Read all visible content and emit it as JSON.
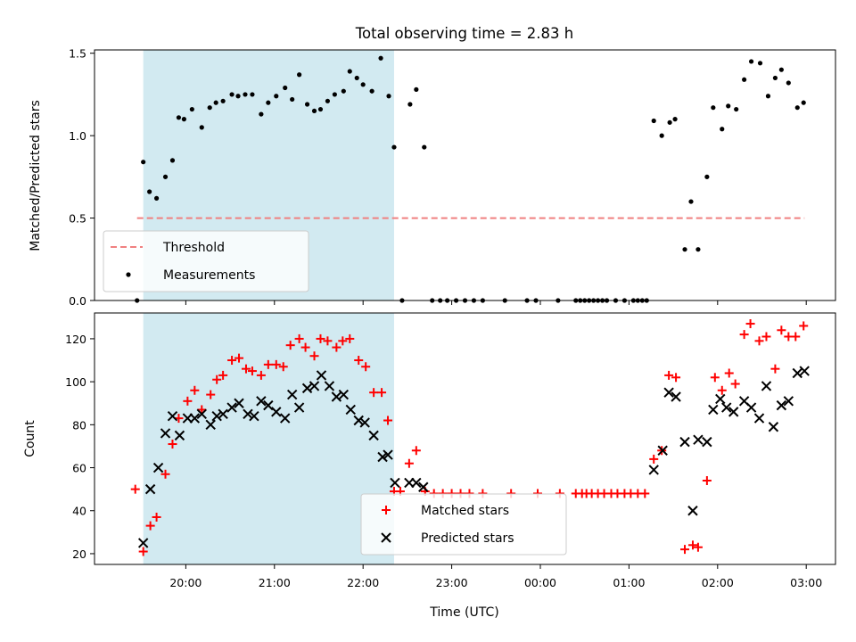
{
  "chart_data": {
    "type": "scatter",
    "title": "Total observing time = 2.83 h",
    "xlabel": "Time (UTC)",
    "x_ticks": [
      "20:00",
      "21:00",
      "22:00",
      "23:00",
      "00:00",
      "01:00",
      "02:00",
      "03:00"
    ],
    "x_tick_hours": [
      20,
      21,
      22,
      23,
      24,
      25,
      26,
      27
    ],
    "xlim": [
      18.97,
      27.33
    ],
    "shaded_span": {
      "x": [
        19.52,
        22.35
      ],
      "color": "#add8e6"
    },
    "panels": [
      {
        "ylabel": "Matched/Predicted stars",
        "ylim": [
          0,
          1.52
        ],
        "y_ticks": [
          "0.0",
          "0.5",
          "1.0",
          "1.5"
        ],
        "y_tick_values": [
          0,
          0.5,
          1.0,
          1.5
        ],
        "legend": {
          "position": "lower left"
        },
        "series": [
          {
            "name": "Threshold",
            "kind": "line",
            "style": "dashed",
            "color": "#f08080",
            "x": [
              19.45,
              26.98
            ],
            "y": [
              0.5,
              0.5
            ]
          },
          {
            "name": "Measurements",
            "kind": "dots",
            "color": "#000000",
            "x": [
              19.45,
              19.52,
              19.59,
              19.67,
              19.77,
              19.85,
              19.92,
              19.98,
              20.07,
              20.18,
              20.27,
              20.34,
              20.42,
              20.52,
              20.59,
              20.67,
              20.75,
              20.85,
              20.93,
              21.02,
              21.12,
              21.2,
              21.28,
              21.37,
              21.45,
              21.52,
              21.6,
              21.68,
              21.78,
              21.85,
              21.93,
              22.0,
              22.1,
              22.2,
              22.29,
              22.35,
              22.44,
              22.53,
              22.6,
              22.69,
              22.78,
              22.87,
              22.95,
              23.05,
              23.15,
              23.25,
              23.35,
              23.6,
              23.85,
              23.95,
              24.2,
              24.4,
              24.45,
              24.5,
              24.55,
              24.6,
              24.65,
              24.7,
              24.75,
              24.85,
              24.95,
              25.05,
              25.1,
              25.15,
              25.2,
              25.28,
              25.37,
              25.46,
              25.52,
              25.63,
              25.7,
              25.78,
              25.88,
              25.95,
              26.05,
              26.12,
              26.21,
              26.3,
              26.38,
              26.48,
              26.57,
              26.65,
              26.72,
              26.8,
              26.9,
              26.97
            ],
            "y": [
              0.0,
              0.84,
              0.66,
              0.62,
              0.75,
              0.85,
              1.11,
              1.1,
              1.16,
              1.05,
              1.17,
              1.2,
              1.21,
              1.25,
              1.24,
              1.25,
              1.25,
              1.13,
              1.2,
              1.24,
              1.29,
              1.22,
              1.37,
              1.19,
              1.15,
              1.16,
              1.21,
              1.25,
              1.27,
              1.39,
              1.35,
              1.31,
              1.27,
              1.47,
              1.24,
              0.93,
              0.0,
              1.19,
              1.28,
              0.93,
              0.0,
              0.0,
              0.0,
              0.0,
              0.0,
              0.0,
              0.0,
              0.0,
              0.0,
              0.0,
              0.0,
              0.0,
              0.0,
              0.0,
              0.0,
              0.0,
              0.0,
              0.0,
              0.0,
              0.0,
              0.0,
              0.0,
              0.0,
              0.0,
              0.0,
              1.09,
              1.0,
              1.08,
              1.1,
              0.31,
              0.6,
              0.31,
              0.75,
              1.17,
              1.04,
              1.18,
              1.16,
              1.34,
              1.45,
              1.44,
              1.24,
              1.35,
              1.4,
              1.32,
              1.17,
              1.2
            ]
          }
        ]
      },
      {
        "ylabel": "Count",
        "ylim": [
          15,
          132
        ],
        "y_ticks": [
          "20",
          "40",
          "60",
          "80",
          "100",
          "120"
        ],
        "y_tick_values": [
          20,
          40,
          60,
          80,
          100,
          120
        ],
        "legend": {
          "position": "lower center"
        },
        "series": [
          {
            "name": "Matched stars",
            "kind": "plus",
            "color": "#ff0000",
            "x": [
              19.43,
              19.52,
              19.6,
              19.67,
              19.77,
              19.85,
              19.92,
              20.02,
              20.1,
              20.18,
              20.28,
              20.35,
              20.42,
              20.52,
              20.6,
              20.68,
              20.75,
              20.85,
              20.93,
              21.02,
              21.1,
              21.18,
              21.28,
              21.35,
              21.45,
              21.52,
              21.6,
              21.7,
              21.77,
              21.85,
              21.95,
              22.03,
              22.12,
              22.21,
              22.28,
              22.35,
              22.42,
              22.52,
              22.6,
              22.7,
              22.8,
              22.9,
              23.0,
              23.1,
              23.2,
              23.35,
              23.67,
              23.97,
              24.22,
              24.4,
              24.47,
              24.52,
              24.58,
              24.65,
              24.72,
              24.8,
              24.87,
              24.95,
              25.02,
              25.1,
              25.18,
              25.28,
              25.37,
              25.45,
              25.53,
              25.63,
              25.72,
              25.78,
              25.88,
              25.97,
              26.05,
              26.13,
              26.2,
              26.3,
              26.37,
              26.47,
              26.55,
              26.65,
              26.72,
              26.8,
              26.88,
              26.97
            ],
            "y": [
              50,
              21,
              33,
              37,
              57,
              71,
              83,
              91,
              96,
              87,
              94,
              101,
              103,
              110,
              111,
              106,
              105,
              103,
              108,
              108,
              107,
              117,
              120,
              116,
              112,
              120,
              119,
              116,
              119,
              120,
              110,
              107,
              95,
              95,
              82,
              49,
              49,
              62,
              68,
              49,
              48,
              48,
              48,
              48,
              48,
              48,
              48,
              48,
              48,
              48,
              48,
              48,
              48,
              48,
              48,
              48,
              48,
              48,
              48,
              48,
              48,
              64,
              68,
              103,
              102,
              22,
              24,
              23,
              54,
              102,
              96,
              104,
              99,
              122,
              127,
              119,
              121,
              106,
              124,
              121,
              121,
              126
            ]
          },
          {
            "name": "Predicted stars",
            "kind": "x",
            "color": "#000000",
            "x": [
              19.52,
              19.6,
              19.69,
              19.77,
              19.85,
              19.93,
              20.02,
              20.1,
              20.18,
              20.28,
              20.35,
              20.42,
              20.52,
              20.6,
              20.7,
              20.77,
              20.85,
              20.93,
              21.02,
              21.12,
              21.2,
              21.28,
              21.37,
              21.45,
              21.53,
              21.62,
              21.7,
              21.78,
              21.86,
              21.95,
              22.02,
              22.12,
              22.22,
              22.28,
              22.36,
              22.52,
              22.6,
              22.68,
              25.28,
              25.38,
              25.45,
              25.53,
              25.63,
              25.72,
              25.78,
              25.88,
              25.95,
              26.03,
              26.1,
              26.18,
              26.3,
              26.38,
              26.47,
              26.55,
              26.63,
              26.72,
              26.8,
              26.9,
              26.98
            ],
            "y": [
              25,
              50,
              60,
              76,
              84,
              75,
              83,
              83,
              85,
              80,
              84,
              85,
              88,
              90,
              85,
              84,
              91,
              89,
              86,
              83,
              94,
              88,
              97,
              98,
              103,
              98,
              93,
              94,
              87,
              82,
              81,
              75,
              65,
              66,
              53,
              53,
              53,
              51,
              59,
              68,
              95,
              93,
              72,
              40,
              73,
              72,
              87,
              92,
              88,
              86,
              91,
              88,
              83,
              98,
              79,
              89,
              91,
              104,
              105
            ]
          }
        ]
      }
    ]
  }
}
